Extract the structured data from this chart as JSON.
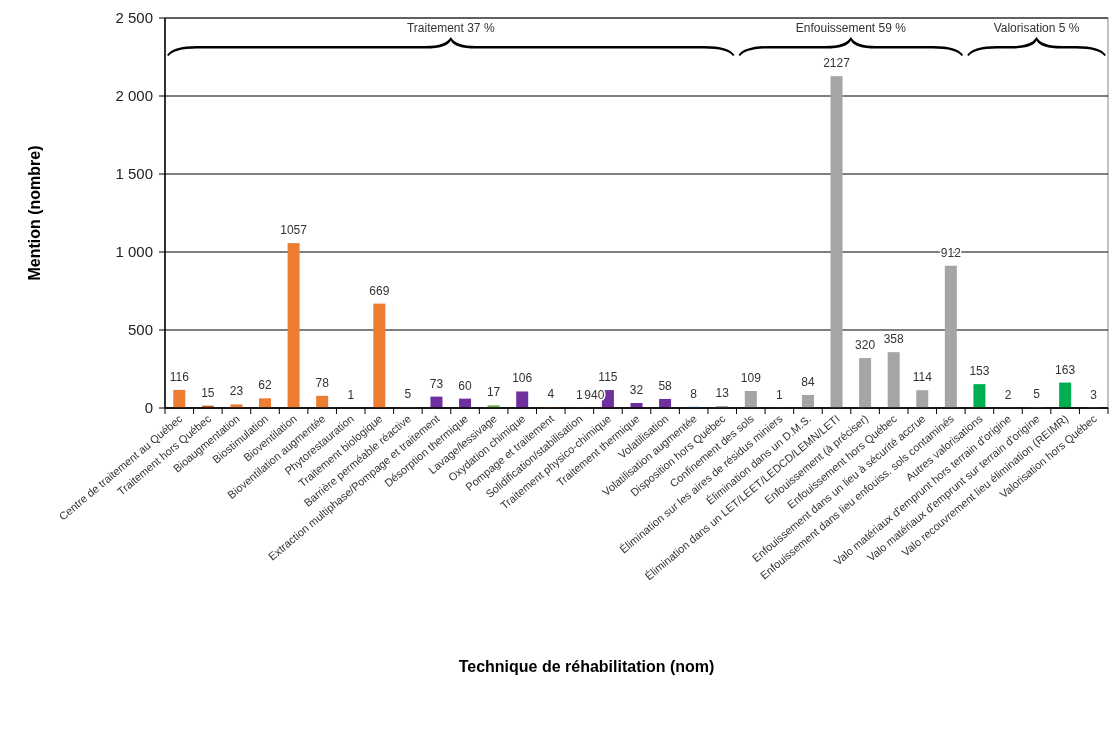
{
  "chart_data": {
    "type": "bar",
    "xlabel": "Technique de réhabilitation (nom)",
    "ylabel": "Mention (nombre)",
    "categories": [
      "Centre de traitement au Québec",
      "Traitement hors Québec",
      "Bioaugmentation",
      "Biostimulation",
      "Bioventilation",
      "Bioventilation augmentée",
      "Phytorestauration",
      "Traitement biologique",
      "Barrière perméable réactive",
      "Extraction multiphase/Pompage et traitement",
      "Désorption thermique",
      "Lavage/lessivage",
      "Oxydation chimique",
      "Pompage et traitement",
      "Solidification/stabilisation",
      "Traitement physico-chimique",
      "Traitement thermique",
      "Volatilisation",
      "Volatilisation augmentée",
      "Disposition hors Québec",
      "Confinement des sols",
      "Élimination sur les aires de résidus miniers",
      "Élimination dans un D.M.S.",
      "Élimination dans un LET/LEET/LEDCD/LEMN/LETI",
      "Enfouissement (à préciser)",
      "Enfouissement hors Québec",
      "Enfouissement dans un lieu à sécurité accrue",
      "Enfouissement dans lieu enfouiss. sols contaminés",
      "Autres valorisations",
      "Valo matériaux d'emprunt hors terrain d'origine",
      "Valo matériaux d'emprunt sur terrain d'origine",
      "Valo recouvrement lieu élimination (REIMR)",
      "Valorisation hors Québec"
    ],
    "values": [
      116,
      15,
      23,
      62,
      1057,
      78,
      1,
      669,
      5,
      73,
      60,
      17,
      106,
      4,
      1,
      115,
      32,
      58,
      8,
      13,
      109,
      1,
      84,
      2127,
      320,
      358,
      114,
      912,
      153,
      2,
      5,
      163,
      3
    ],
    "value_labels": [
      "116",
      "15",
      "23",
      "62",
      "1057",
      "78",
      "1",
      "669",
      "5",
      "73",
      "60",
      "17",
      "106",
      "4",
      "1",
      "115",
      "32",
      "58",
      "8",
      "13",
      "109",
      "1",
      "84",
      "2127",
      "320",
      "358",
      "114",
      "912",
      "153",
      "2",
      "5",
      "163",
      "3"
    ],
    "colors": [
      "#ed7d31",
      "#c55a11",
      "#ed7d31",
      "#ed7d31",
      "#ed7d31",
      "#ed7d31",
      "#4a86c8",
      "#ed7d31",
      "#a5a5a5",
      "#7030a0",
      "#7030a0",
      "#70ad47",
      "#7030a0",
      "#ed7d31",
      "#a5a5a5",
      "#7030a0",
      "#7030a0",
      "#7030a0",
      "#5b9bd5",
      "#a5a5a5",
      "#a5a5a5",
      "#f0b030",
      "#a5a5a5",
      "#a5a5a5",
      "#a5a5a5",
      "#a5a5a5",
      "#a5a5a5",
      "#a5a5a5",
      "#00b050",
      "#70ad47",
      "#9dc3e6",
      "#00b050",
      "#c9c9c9"
    ],
    "ylim": [
      0,
      2500
    ],
    "yticks": [
      {
        "value": 0,
        "label": "0"
      },
      {
        "value": 500,
        "label": "500"
      },
      {
        "value": 1000,
        "label": "1 000"
      },
      {
        "value": 1500,
        "label": "1 500"
      },
      {
        "value": 2000,
        "label": "2 000"
      },
      {
        "value": 2500,
        "label": "2 500"
      }
    ],
    "grid": "y",
    "annotations": [
      "Traitement 37 %",
      "Enfouissement 59 %",
      "Valorisation 5 %",
      {
        "text": "940",
        "x": "Solidification/stabilisation",
        "y": 1
      }
    ]
  }
}
